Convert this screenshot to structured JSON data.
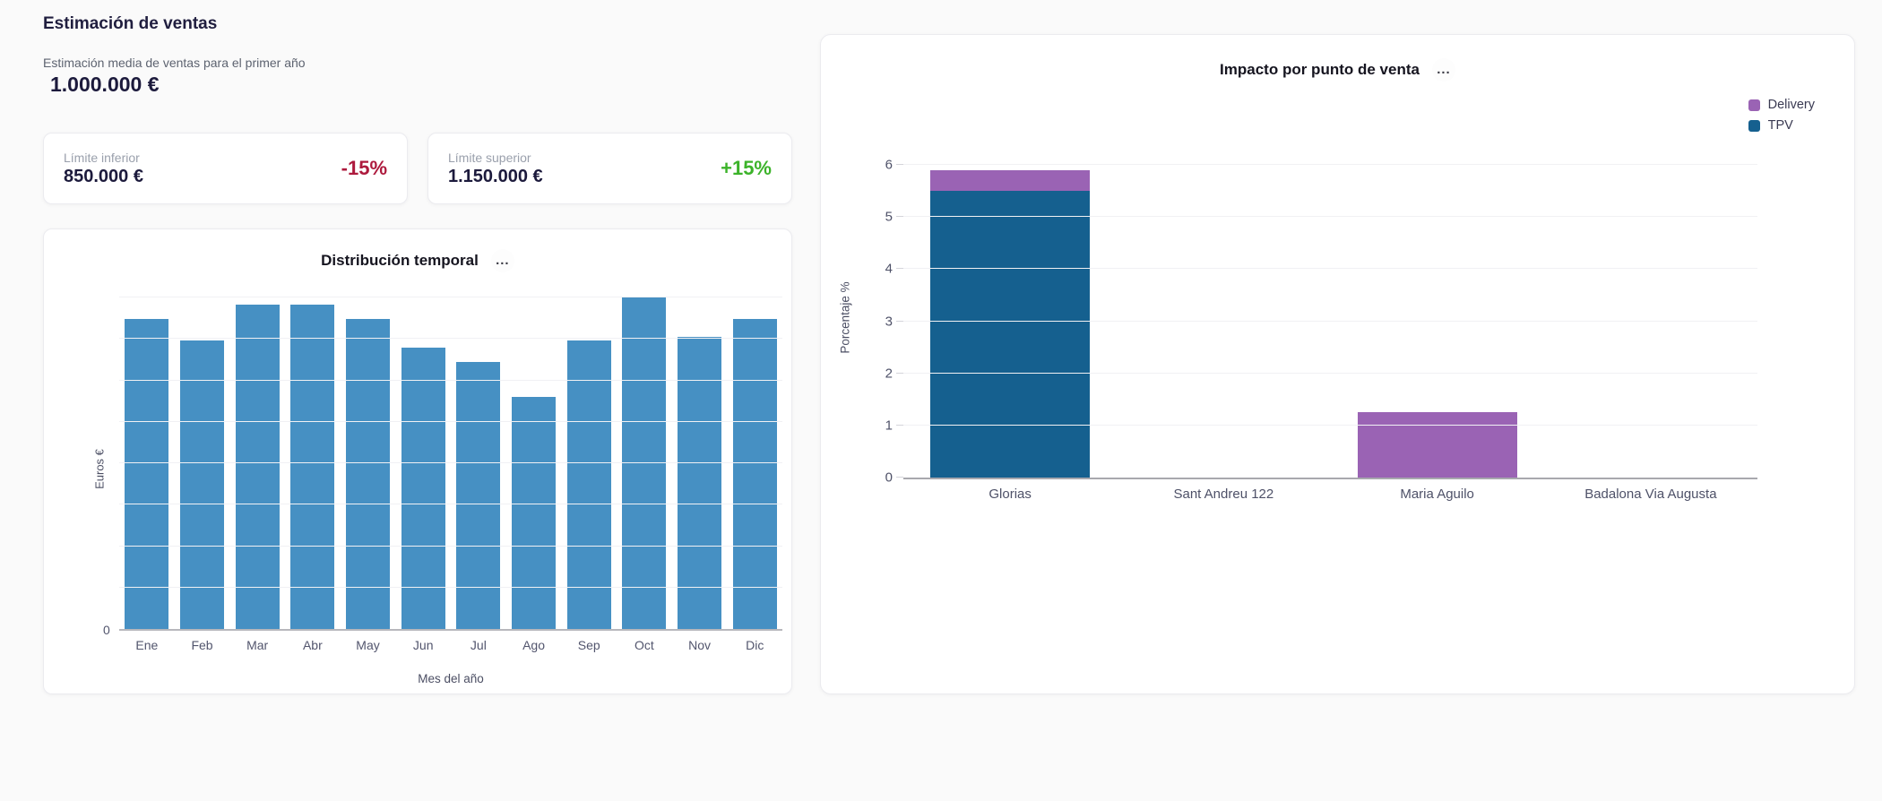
{
  "page": {
    "background": "#fafafa"
  },
  "sales_panel": {
    "title": "Estimación de ventas",
    "estimate_label": "Estimación media de ventas para el primer año",
    "estimate_value": "1.000.000 €",
    "lower_limit": {
      "label": "Límite inferior",
      "value": "850.000 €",
      "delta": "-15%",
      "delta_color": "#ad1a3d"
    },
    "upper_limit": {
      "label": "Límite superior",
      "value": "1.150.000 €",
      "delta": "+15%",
      "delta_color": "#3cb32a"
    }
  },
  "icons": {
    "context_menu": "..."
  },
  "chart_data": [
    {
      "id": "monthly_distribution",
      "type": "bar",
      "title": "Distribución temporal",
      "categories": [
        "Ene",
        "Feb",
        "Mar",
        "Abr",
        "May",
        "Jun",
        "Jul",
        "Ago",
        "Sep",
        "Oct",
        "Nov",
        "Dic"
      ],
      "values": [
        87000,
        81000,
        91000,
        91000,
        87000,
        79000,
        75000,
        65000,
        81000,
        93000,
        82000,
        87000
      ],
      "xlabel": "Mes del año",
      "ylabel": "Euros €",
      "ylim": [
        0,
        93000
      ],
      "y_tick_labels_visible": [
        "0"
      ],
      "bar_color": "#4690c3",
      "grid": true,
      "gridline_count": 8,
      "legend_position": "none"
    },
    {
      "id": "impact_by_pos",
      "type": "stacked-bar",
      "title": "Impacto por punto de venta",
      "categories": [
        "Glorias",
        "Sant Andreu 122",
        "Maria Aguilo",
        "Badalona Via Augusta"
      ],
      "series": [
        {
          "name": "Delivery",
          "color": "#9a63b4",
          "values": [
            0.4,
            0,
            1.25,
            0
          ]
        },
        {
          "name": "TPV",
          "color": "#15608f",
          "values": [
            5.5,
            0,
            0,
            0
          ]
        }
      ],
      "xlabel": "",
      "ylabel": "Porcentaje %",
      "ylim": [
        0,
        6
      ],
      "yticks": [
        0,
        1,
        2,
        3,
        4,
        5,
        6
      ],
      "grid": true,
      "legend_position": "top-right"
    }
  ]
}
